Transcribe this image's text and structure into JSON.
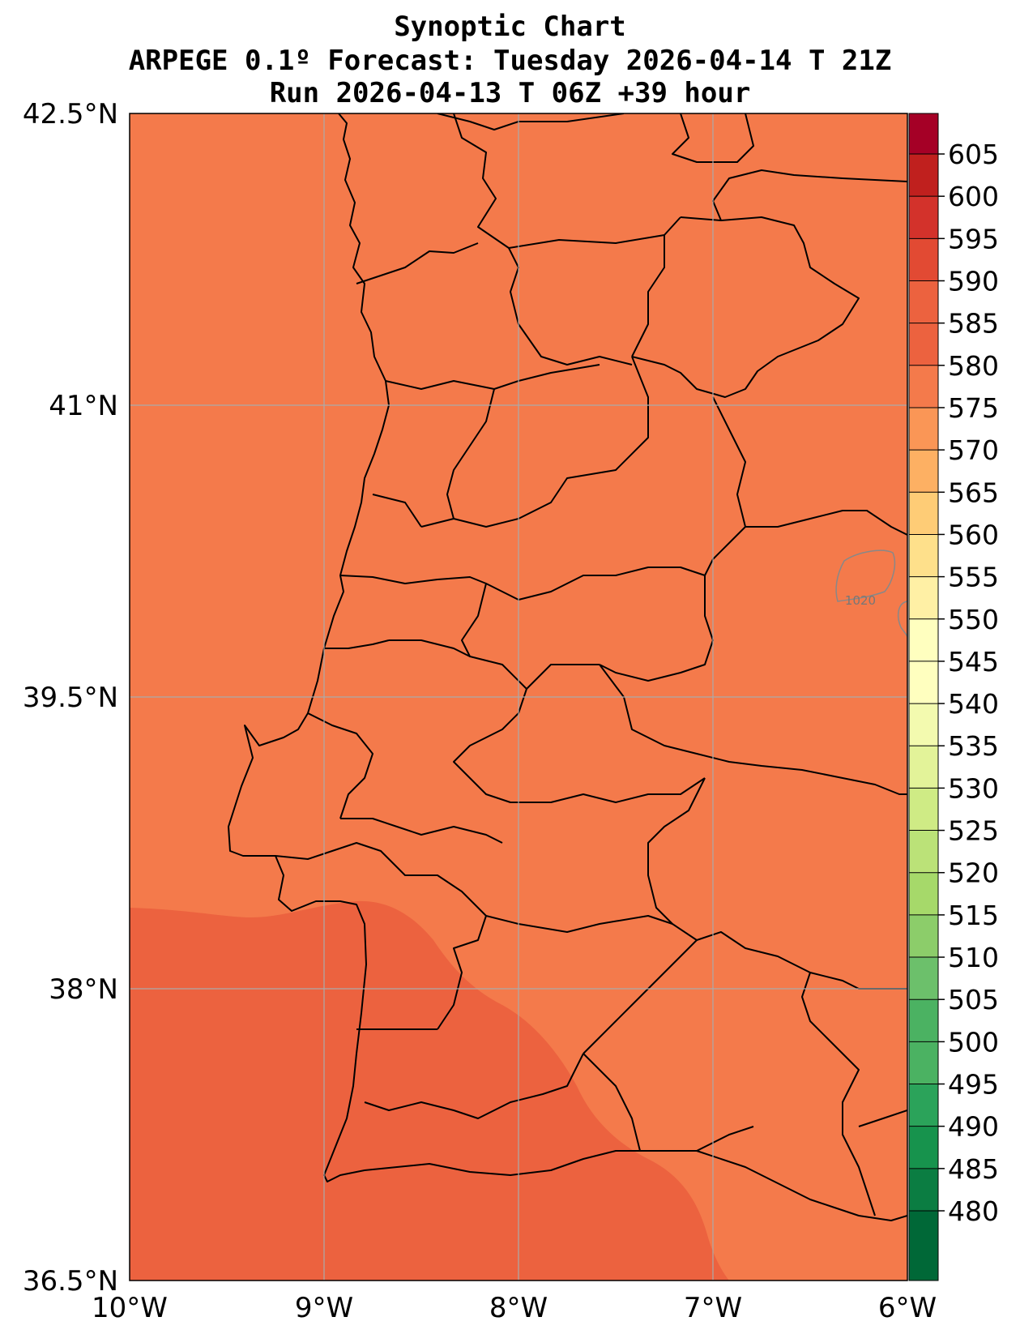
{
  "header": {
    "line1": "Synoptic Chart",
    "line2": "ARPEGE 0.1º Forecast: Tuesday 2026-04-14 T 21Z",
    "line3": "Run 2026-04-13 T 06Z +39 hour"
  },
  "map": {
    "lon_range": [
      -10,
      -6
    ],
    "lat_range": [
      36.5,
      42.5
    ],
    "lon_ticks": [
      "10°W",
      "9°W",
      "8°W",
      "7°W",
      "6°W"
    ],
    "lat_ticks": [
      "42.5°N",
      "41°N",
      "39.5°N",
      "38°N",
      "36.5°N"
    ],
    "contour_label": "1020",
    "fill_colors": {
      "band_575_580": "#f47a4b",
      "band_580_585": "#ec623f"
    }
  },
  "colorbar": {
    "levels": [
      "480",
      "485",
      "490",
      "495",
      "500",
      "505",
      "510",
      "515",
      "520",
      "525",
      "530",
      "535",
      "540",
      "545",
      "550",
      "555",
      "560",
      "565",
      "570",
      "575",
      "580",
      "585",
      "590",
      "595",
      "600",
      "605"
    ],
    "colors": [
      "#006837",
      "#0b7d42",
      "#17934d",
      "#2ba35a",
      "#4bb262",
      "#6cc06b",
      "#8ccd6a",
      "#a6d96a",
      "#bbe278",
      "#cfeb85",
      "#e3f399",
      "#f3faaf",
      "#ffffbf",
      "#fff0a5",
      "#fee08b",
      "#fecc76",
      "#fdb063",
      "#fa9656",
      "#f47a4b",
      "#ec623f",
      "#e24a33",
      "#d3322b",
      "#c0201e",
      "#a50026"
    ]
  }
}
